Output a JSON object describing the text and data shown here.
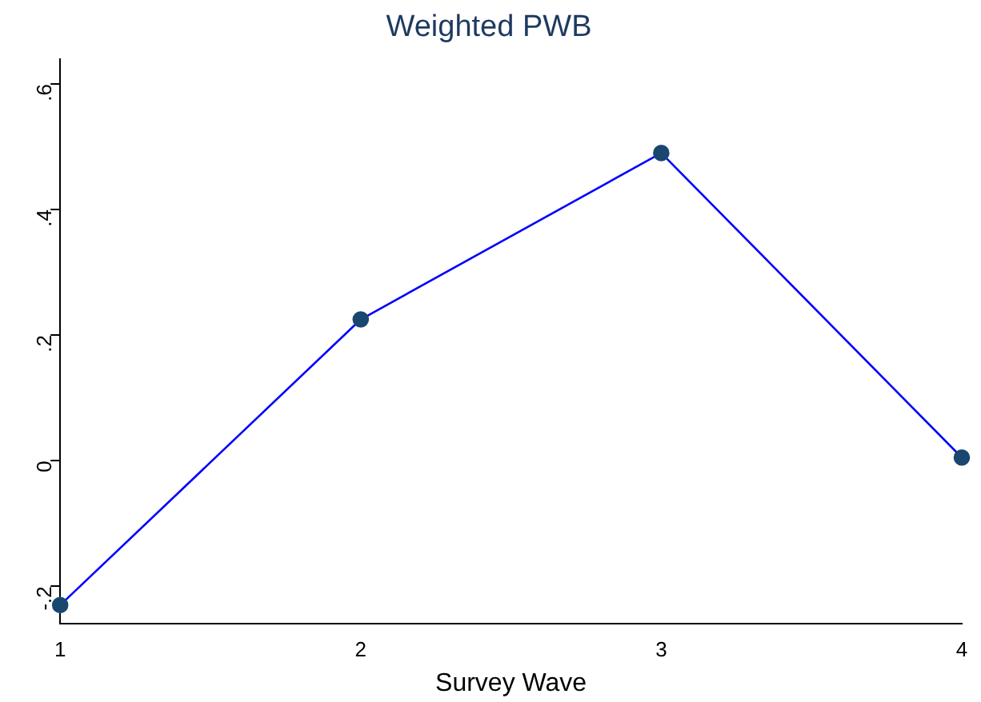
{
  "chart_data": {
    "type": "line",
    "title": "Weighted PWB",
    "xlabel": "Survey Wave",
    "x": [
      1,
      2,
      3,
      4
    ],
    "series": [
      {
        "color": "#0000ff",
        "values": [
          -0.23,
          0.225,
          0.49,
          0.005
        ]
      }
    ],
    "xlim": [
      1,
      4
    ],
    "xticks": [
      1,
      2,
      3,
      4
    ],
    "ylim": [
      -0.26,
      0.64
    ],
    "yticks": [
      {
        "value": -0.2,
        "label": "-.2"
      },
      {
        "value": 0,
        "label": "0"
      },
      {
        "value": 0.2,
        "label": ".2"
      },
      {
        "value": 0.4,
        "label": ".4"
      },
      {
        "value": 0.6,
        "label": ".6"
      }
    ],
    "grid": false,
    "legend": false,
    "marker": "circle",
    "line_style": "solid"
  }
}
